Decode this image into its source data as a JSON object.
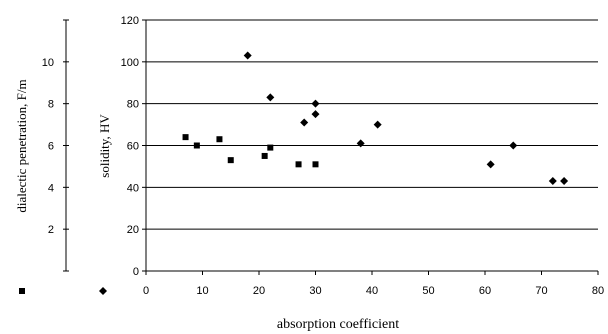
{
  "chart_data": {
    "type": "scatter",
    "xlabel": "absorption coefficient",
    "x_range": [
      0,
      80
    ],
    "x_ticks": [
      0,
      10,
      20,
      30,
      40,
      50,
      60,
      70,
      80
    ],
    "grid": true,
    "axes": {
      "left": {
        "label": "dialectic penetration, F/m",
        "range": [
          0,
          12
        ],
        "ticks": [
          2,
          4,
          6,
          8,
          10
        ]
      },
      "right": {
        "label": "solidity, HV",
        "range": [
          0,
          120
        ],
        "ticks": [
          0,
          20,
          40,
          60,
          80,
          100,
          120
        ]
      }
    },
    "series": [
      {
        "marker": "square",
        "axis": "left",
        "legend_marker": true,
        "x": [
          7,
          9,
          13,
          15,
          21,
          22,
          27,
          30
        ],
        "y": [
          6.4,
          6.0,
          6.3,
          5.3,
          5.5,
          5.9,
          5.1,
          5.1
        ]
      },
      {
        "marker": "diamond",
        "axis": "right",
        "legend_marker": true,
        "x": [
          18,
          22,
          28,
          30,
          30,
          38,
          41,
          61,
          65,
          72,
          74
        ],
        "y": [
          103,
          83,
          71,
          80,
          75,
          61,
          70,
          51,
          60,
          43,
          43
        ]
      }
    ]
  }
}
